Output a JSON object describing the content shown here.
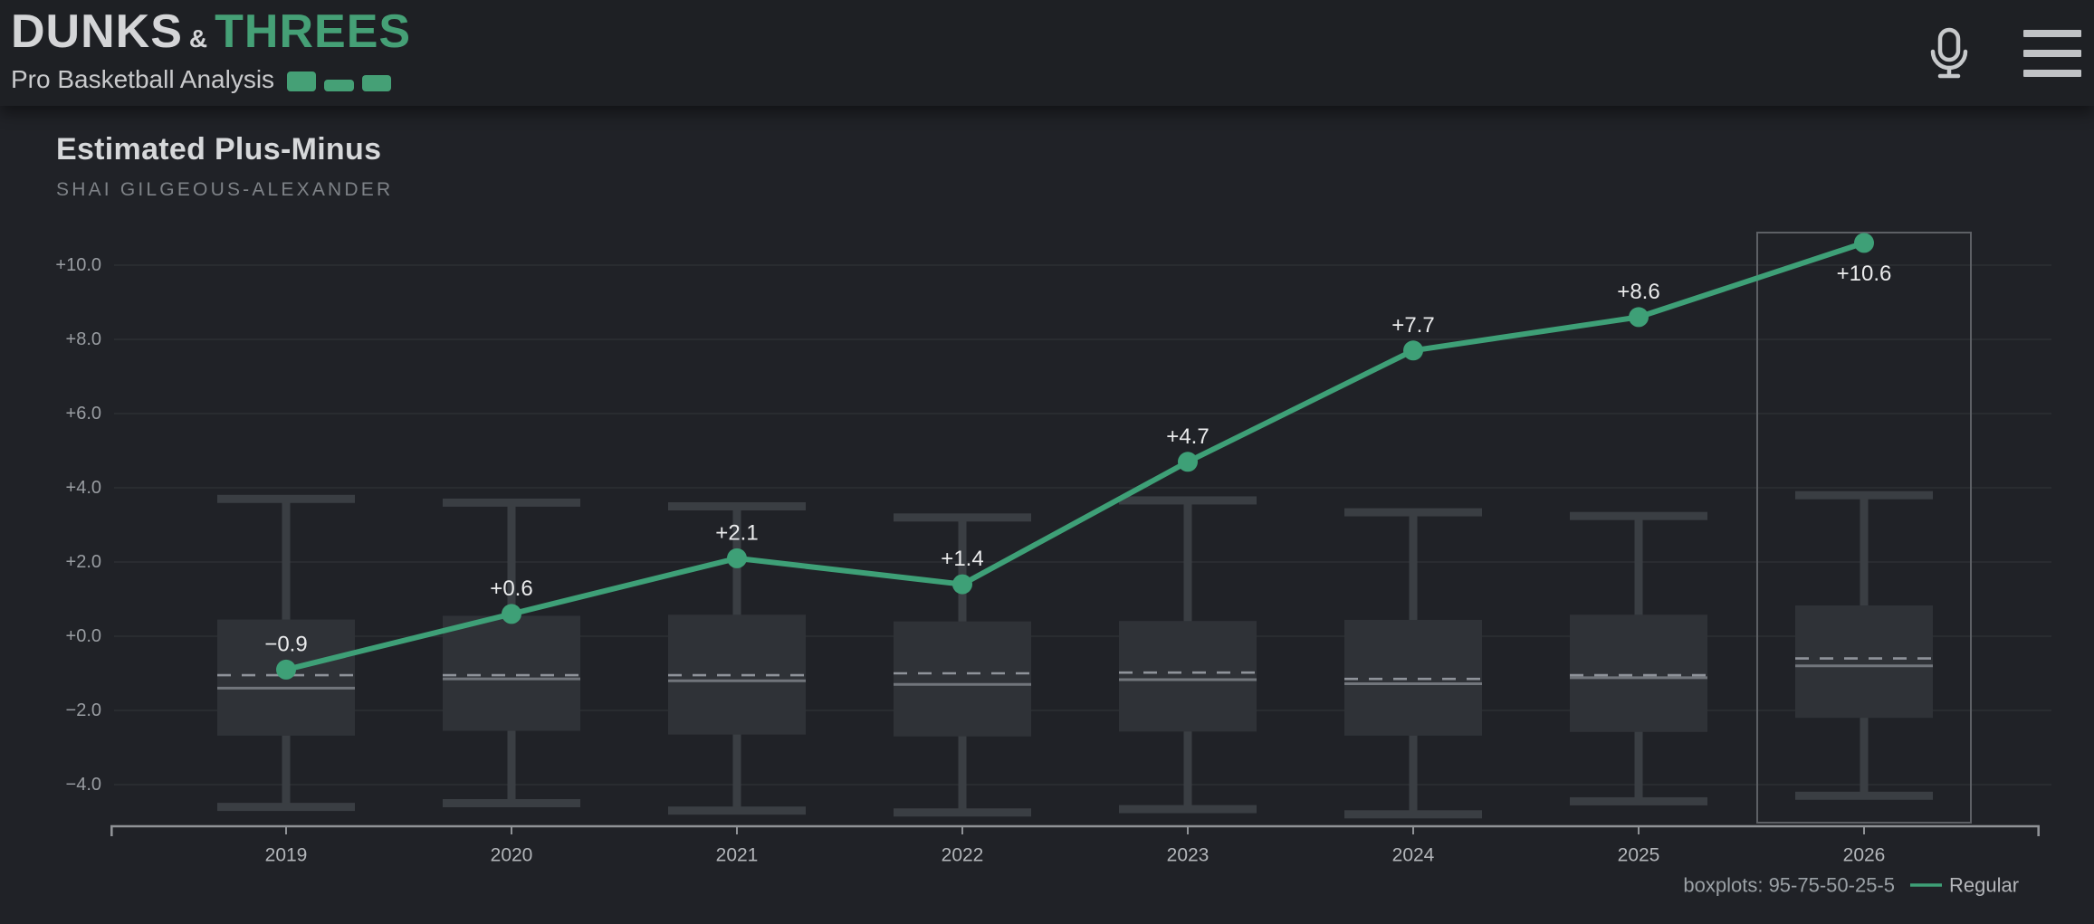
{
  "header": {
    "logo": {
      "part1": "DUNKS",
      "amp": "&",
      "part2": "THREES",
      "tagline": "Pro Basketball Analysis",
      "bars_icon": "bar-chart-icon"
    },
    "mic_icon": "microphone-icon",
    "menu_icon": "hamburger-menu-icon"
  },
  "page": {
    "title": "Estimated Plus-Minus",
    "subtitle": "SHAI GILGEOUS-ALEXANDER"
  },
  "legend": {
    "boxplot_label": "boxplots: 95-75-50-25-5",
    "series_label": "Regular"
  },
  "chart_data": {
    "type": "line",
    "title": "Estimated Plus-Minus",
    "subtitle": "SHAI GILGEOUS-ALEXANDER",
    "x": [
      2019,
      2020,
      2021,
      2022,
      2023,
      2024,
      2025,
      2026
    ],
    "series": [
      {
        "name": "Regular",
        "values": [
          -0.9,
          0.6,
          2.1,
          1.4,
          4.7,
          7.7,
          8.6,
          10.6
        ]
      }
    ],
    "point_labels": [
      "−0.9",
      "+0.6",
      "+2.1",
      "+1.4",
      "+4.7",
      "+7.7",
      "+8.6",
      "+10.6"
    ],
    "y_ticks": [
      {
        "label": "+10.0",
        "value": 10
      },
      {
        "label": "+8.0",
        "value": 8
      },
      {
        "label": "+6.0",
        "value": 6
      },
      {
        "label": "+4.0",
        "value": 4
      },
      {
        "label": "+2.0",
        "value": 2
      },
      {
        "label": "+0.0",
        "value": 0
      },
      {
        "label": "−2.0",
        "value": -2
      },
      {
        "label": "−4.0",
        "value": -4
      }
    ],
    "ylim": [
      -5.3,
      11.2
    ],
    "grid": true,
    "legend_position": "bottom-right",
    "highlight_year": 2026,
    "boxplots": {
      "note": "boxplots: 95-75-50-25-5",
      "percentiles": [
        95,
        75,
        50,
        25,
        5
      ],
      "per_year": [
        {
          "year": 2019,
          "p95": 3.7,
          "p75": 0.45,
          "mean": -1.05,
          "p50": -1.4,
          "p25": -2.68,
          "p5": -4.6
        },
        {
          "year": 2020,
          "p95": 3.6,
          "p75": 0.55,
          "mean": -1.05,
          "p50": -1.15,
          "p25": -2.55,
          "p5": -4.5
        },
        {
          "year": 2021,
          "p95": 3.5,
          "p75": 0.58,
          "mean": -1.05,
          "p50": -1.2,
          "p25": -2.65,
          "p5": -4.7
        },
        {
          "year": 2022,
          "p95": 3.2,
          "p75": 0.4,
          "mean": -1.0,
          "p50": -1.3,
          "p25": -2.7,
          "p5": -4.75
        },
        {
          "year": 2023,
          "p95": 3.66,
          "p75": 0.41,
          "mean": -0.98,
          "p50": -1.17,
          "p25": -2.57,
          "p5": -4.66
        },
        {
          "year": 2024,
          "p95": 3.34,
          "p75": 0.44,
          "mean": -1.15,
          "p50": -1.28,
          "p25": -2.68,
          "p5": -4.8
        },
        {
          "year": 2025,
          "p95": 3.24,
          "p75": 0.58,
          "mean": -1.05,
          "p50": -1.12,
          "p25": -2.58,
          "p5": -4.45
        },
        {
          "year": 2026,
          "p95": 3.8,
          "p75": 0.83,
          "mean": -0.6,
          "p50": -0.8,
          "p25": -2.2,
          "p5": -4.3
        }
      ]
    },
    "colors": {
      "line": "#3ea077",
      "box_fill": "#2f3237",
      "whisker": "#3a3e43",
      "median": "#71757b",
      "mean_dashed": "#8f939a",
      "grid": "#2c2f34",
      "axis": "#8f9296",
      "y_label": "#999da2",
      "x_label": "#b2b5b9",
      "point_label": "#eaebec",
      "legend_text": "#9aa0a5",
      "legend_series_text": "#b4b6ba",
      "highlight_box": "#5d6065"
    }
  }
}
